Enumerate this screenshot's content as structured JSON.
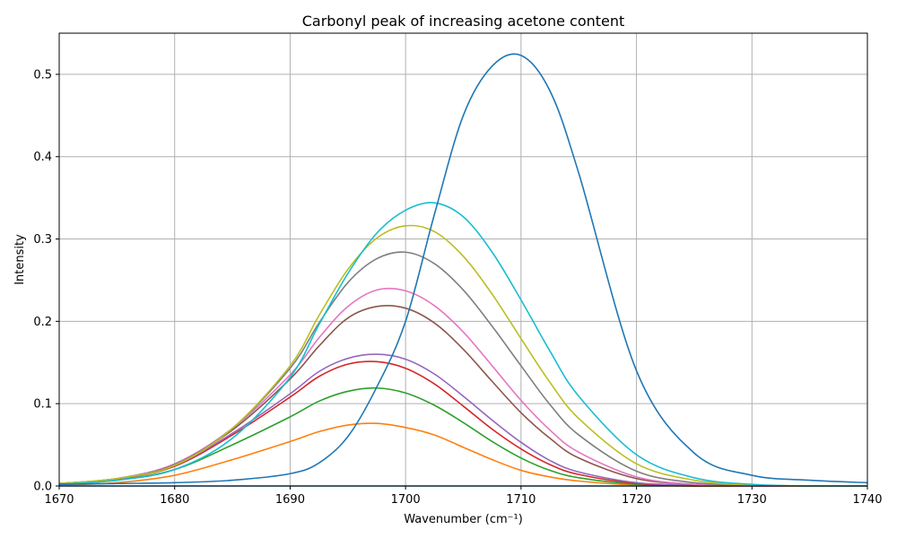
{
  "chart_data": {
    "type": "line",
    "title": "Carbonyl peak of increasing acetone content",
    "xlabel": "Wavenumber (cm⁻¹)",
    "ylabel": "Intensity",
    "xlim": [
      1670,
      1740
    ],
    "ylim": [
      0,
      0.55
    ],
    "xticks": [
      "1670",
      "1680",
      "1690",
      "1700",
      "1710",
      "1720",
      "1730",
      "1740"
    ],
    "yticks": [
      "0.0",
      "0.1",
      "0.2",
      "0.3",
      "0.4",
      "0.5"
    ],
    "grid": true,
    "x": [
      1670,
      1675,
      1680,
      1685,
      1690,
      1692.5,
      1695,
      1697.5,
      1700,
      1702.5,
      1705,
      1707.5,
      1710,
      1712.5,
      1715,
      1720,
      1725,
      1730,
      1735,
      1740
    ],
    "series": [
      {
        "color": "#1f77b4",
        "values": [
          0.0,
          0.0,
          0.0,
          0.0,
          0.0,
          0.0,
          0.0,
          0.0,
          0.0,
          0.0,
          0.0,
          0.0,
          0.0,
          0.0,
          0.0,
          0.0,
          0.0,
          0.0,
          0.0,
          0.0
        ]
      },
      {
        "color": "#ff7f0e",
        "values": [
          0.001,
          0.004,
          0.013,
          0.032,
          0.054,
          0.066,
          0.074,
          0.076,
          0.071,
          0.062,
          0.047,
          0.032,
          0.019,
          0.011,
          0.006,
          0.001,
          0.0,
          0.0,
          0.0,
          0.0
        ]
      },
      {
        "color": "#2ca02c",
        "values": [
          0.002,
          0.007,
          0.02,
          0.05,
          0.084,
          0.103,
          0.115,
          0.119,
          0.113,
          0.098,
          0.077,
          0.054,
          0.034,
          0.019,
          0.01,
          0.002,
          0.0,
          0.0,
          0.0,
          0.0
        ]
      },
      {
        "color": "#d62728",
        "values": [
          0.002,
          0.008,
          0.024,
          0.062,
          0.108,
          0.133,
          0.148,
          0.151,
          0.143,
          0.124,
          0.097,
          0.069,
          0.045,
          0.026,
          0.014,
          0.003,
          0.0,
          0.0,
          0.0,
          0.0
        ]
      },
      {
        "color": "#9467bd",
        "values": [
          0.002,
          0.008,
          0.025,
          0.064,
          0.112,
          0.139,
          0.155,
          0.16,
          0.154,
          0.136,
          0.109,
          0.08,
          0.053,
          0.031,
          0.017,
          0.004,
          0.001,
          0.0,
          0.0,
          0.0
        ]
      },
      {
        "color": "#8c564b",
        "values": [
          0.003,
          0.009,
          0.026,
          0.068,
          0.13,
          0.17,
          0.204,
          0.218,
          0.216,
          0.198,
          0.166,
          0.127,
          0.089,
          0.058,
          0.034,
          0.009,
          0.002,
          0.0,
          0.0,
          0.0
        ]
      },
      {
        "color": "#e377c2",
        "values": [
          0.003,
          0.009,
          0.027,
          0.07,
          0.135,
          0.18,
          0.218,
          0.238,
          0.237,
          0.219,
          0.187,
          0.146,
          0.104,
          0.068,
          0.041,
          0.011,
          0.002,
          0.0,
          0.0,
          0.0
        ]
      },
      {
        "color": "#7f7f7f",
        "values": [
          0.003,
          0.009,
          0.026,
          0.07,
          0.143,
          0.198,
          0.247,
          0.276,
          0.284,
          0.27,
          0.238,
          0.194,
          0.146,
          0.099,
          0.062,
          0.018,
          0.004,
          0.001,
          0.0,
          0.0
        ]
      },
      {
        "color": "#bcbd22",
        "values": [
          0.003,
          0.009,
          0.025,
          0.07,
          0.146,
          0.207,
          0.263,
          0.301,
          0.316,
          0.309,
          0.279,
          0.233,
          0.179,
          0.126,
          0.082,
          0.027,
          0.007,
          0.001,
          0.0,
          0.0
        ]
      },
      {
        "color": "#17becf",
        "values": [
          0.002,
          0.007,
          0.02,
          0.058,
          0.132,
          0.196,
          0.258,
          0.307,
          0.335,
          0.344,
          0.327,
          0.284,
          0.226,
          0.164,
          0.109,
          0.038,
          0.01,
          0.002,
          0.0,
          0.0
        ]
      },
      {
        "color": "#1f77b4",
        "values": [
          0.002,
          0.003,
          0.004,
          0.007,
          0.015,
          0.028,
          0.06,
          0.12,
          0.2,
          0.33,
          0.45,
          0.51,
          0.523,
          0.48,
          0.38,
          0.14,
          0.04,
          0.013,
          0.007,
          0.004
        ]
      }
    ]
  }
}
